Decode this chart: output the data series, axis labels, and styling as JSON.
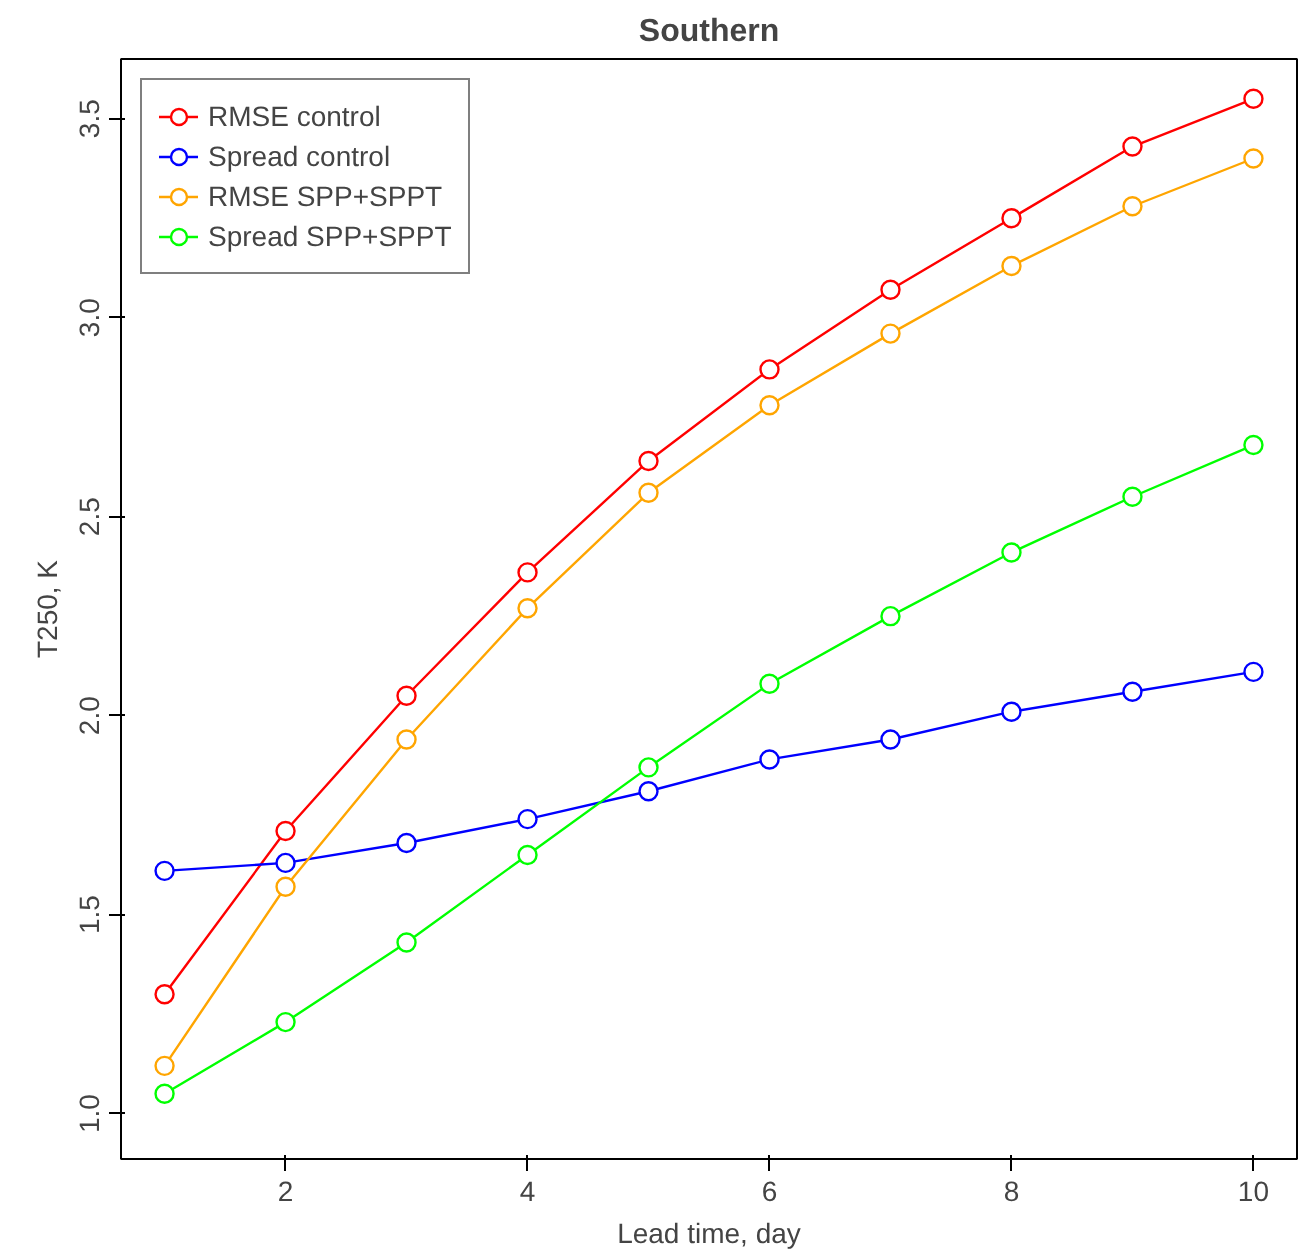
{
  "chart_data": {
    "type": "line",
    "title": "Southern",
    "xlabel": "Lead time, day",
    "ylabel": "T250, K",
    "x": [
      1,
      2,
      3,
      4,
      5,
      6,
      7,
      8,
      9,
      10
    ],
    "series": [
      {
        "name": "RMSE control",
        "color": "#ff0000",
        "values": [
          1.3,
          1.71,
          2.05,
          2.36,
          2.64,
          2.87,
          3.07,
          3.25,
          3.43,
          3.55
        ]
      },
      {
        "name": "Spread control",
        "color": "#0000ff",
        "values": [
          1.61,
          1.63,
          1.68,
          1.74,
          1.81,
          1.89,
          1.94,
          2.01,
          2.06,
          2.11
        ]
      },
      {
        "name": "RMSE SPP+SPPT",
        "color": "#ffa500",
        "values": [
          1.12,
          1.57,
          1.94,
          2.27,
          2.56,
          2.78,
          2.96,
          3.13,
          3.28,
          3.4
        ]
      },
      {
        "name": "Spread SPP+SPPT",
        "color": "#00ff00",
        "values": [
          1.05,
          1.23,
          1.43,
          1.65,
          1.87,
          2.08,
          2.25,
          2.41,
          2.55,
          2.68
        ]
      }
    ],
    "xlim": [
      0.64,
      10.36
    ],
    "ylim": [
      0.886,
      3.65
    ],
    "xticks": [
      2,
      4,
      6,
      8,
      10
    ],
    "yticks": [
      {
        "value": 1.0,
        "label": "1.0"
      },
      {
        "value": 1.5,
        "label": "1.5"
      },
      {
        "value": 2.0,
        "label": "2.0"
      },
      {
        "value": 2.5,
        "label": "2.5"
      },
      {
        "value": 3.0,
        "label": "3.0"
      },
      {
        "value": 3.5,
        "label": "3.5"
      }
    ],
    "legend": "top left",
    "marker": "circle",
    "grid": false
  }
}
